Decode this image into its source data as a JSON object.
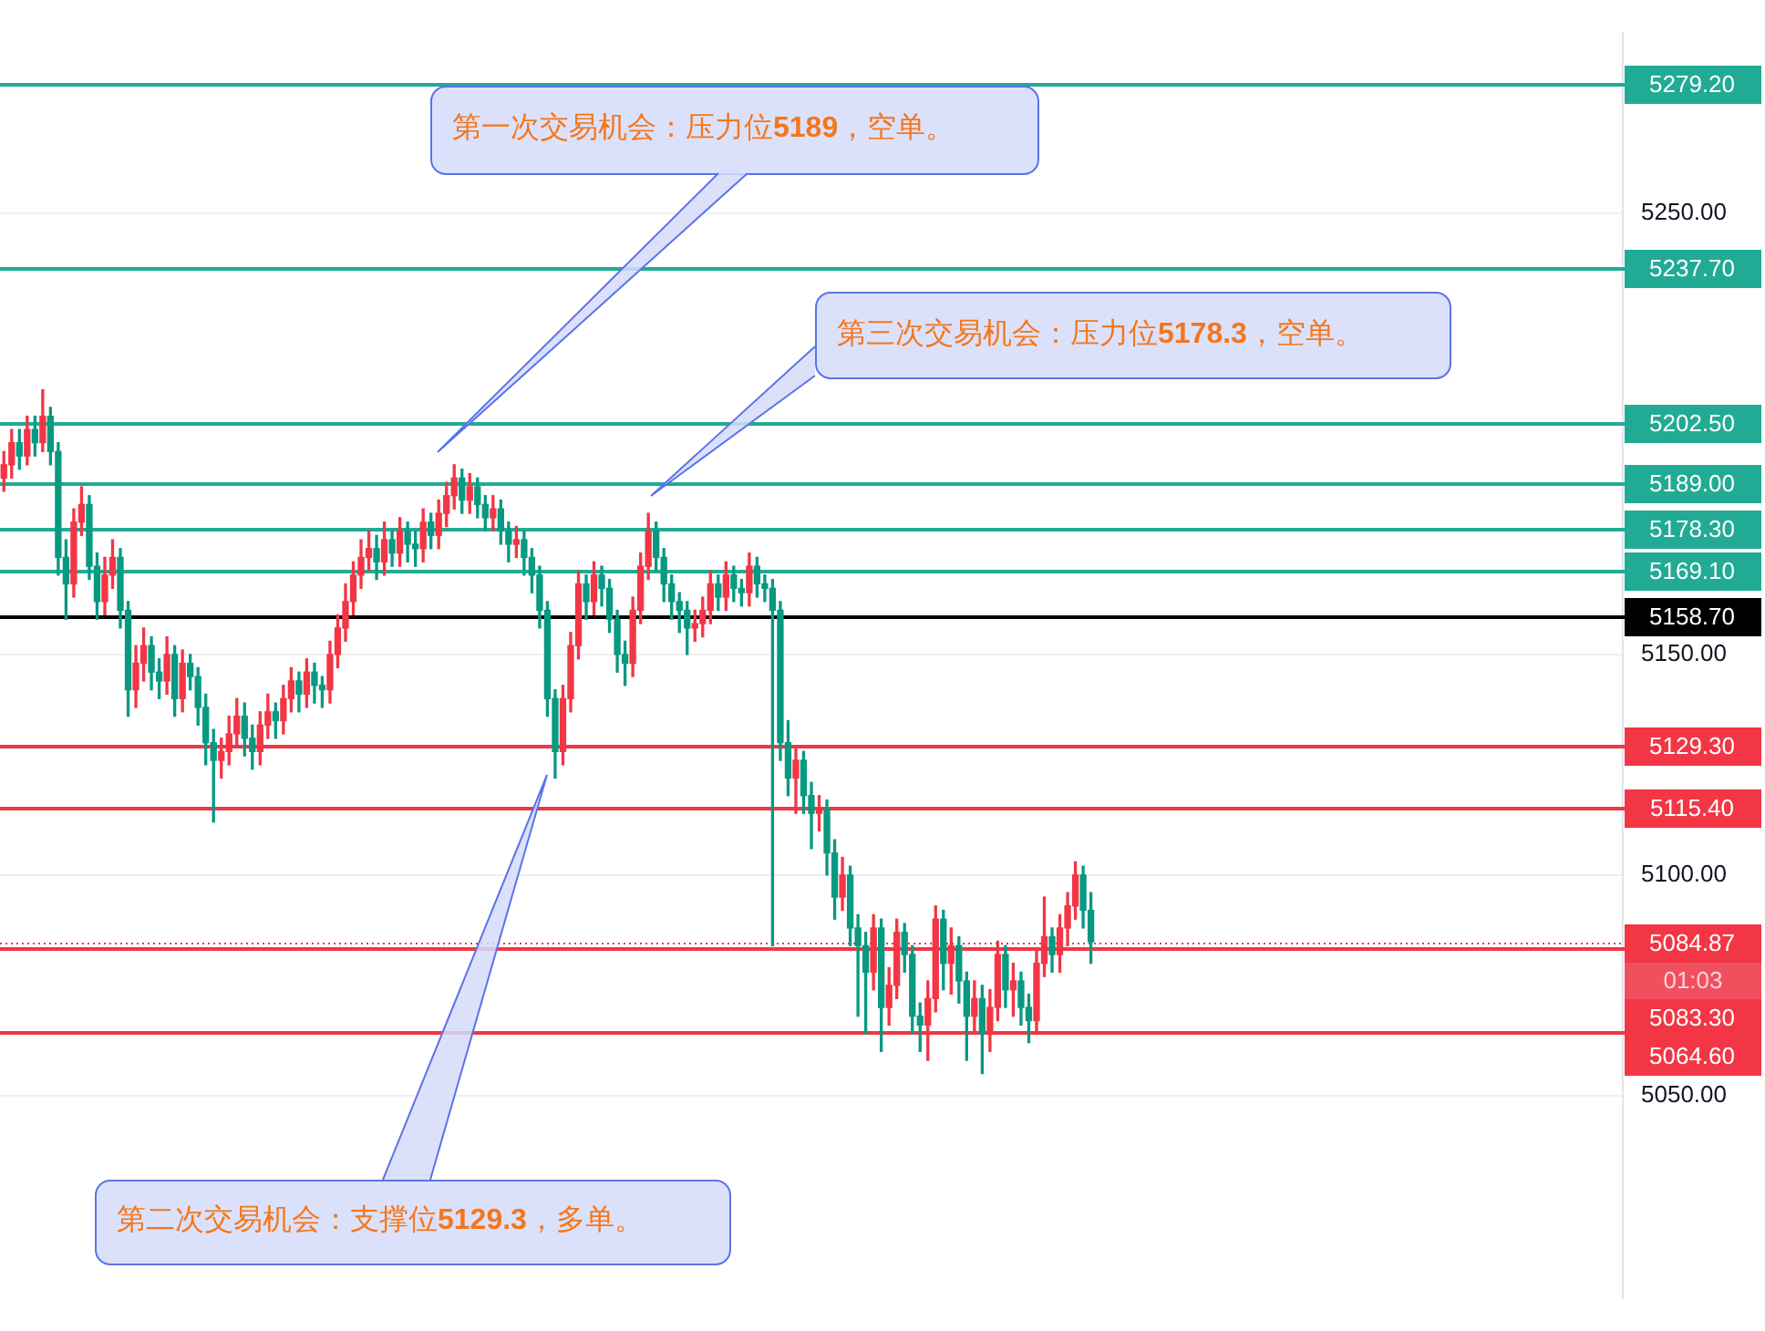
{
  "chart_data": {
    "type": "candlestick",
    "categories": [
      null,
      null,
      null,
      null,
      null,
      null,
      null,
      null,
      null,
      null,
      null,
      null,
      null,
      null,
      null,
      null,
      null,
      null,
      null,
      null,
      null,
      null,
      null,
      null,
      null,
      null,
      null,
      null,
      null,
      null,
      null,
      null,
      null,
      null,
      null,
      null,
      null,
      null,
      null,
      null,
      null,
      null,
      null,
      null,
      null,
      null,
      null,
      null,
      null,
      null,
      null,
      null,
      null,
      null,
      null,
      null,
      null,
      null,
      null,
      null,
      null,
      null,
      null,
      null,
      null,
      null,
      null,
      null,
      null,
      null,
      null,
      null,
      null,
      null,
      null,
      null,
      null,
      null,
      null,
      null,
      null,
      null,
      null,
      null,
      null,
      null,
      null,
      null,
      null,
      null,
      null,
      null,
      null,
      null,
      null,
      null,
      null,
      null,
      null,
      null,
      null,
      null,
      null,
      null,
      null,
      null,
      null,
      null,
      null,
      null,
      null,
      null,
      null,
      null,
      null,
      null,
      null,
      null,
      null,
      null,
      null,
      null,
      null,
      null,
      null,
      null,
      null,
      null,
      null,
      null,
      null,
      null,
      null,
      null,
      null,
      null,
      null,
      null,
      null,
      null,
      null,
      null,
      null,
      null,
      null,
      null,
      null,
      null,
      null,
      null,
      null,
      null,
      null,
      null,
      null,
      null,
      null,
      null,
      null,
      null,
      null,
      null,
      null,
      null,
      null,
      null,
      null,
      null,
      null,
      null,
      null,
      null,
      null,
      null,
      null,
      null,
      null,
      null,
      null,
      null,
      null,
      null,
      null,
      null,
      null,
      null,
      null,
      null,
      null,
      null,
      null,
      null,
      null,
      null,
      null,
      null,
      null,
      null,
      null,
      null,
      null,
      null,
      null,
      null,
      null,
      null,
      null,
      null,
      null
    ],
    "ohlc": [
      [
        5190,
        5196,
        5187,
        5193
      ],
      [
        5193,
        5201,
        5190,
        5198
      ],
      [
        5198,
        5201,
        5192,
        5195
      ],
      [
        5195,
        5204,
        5193,
        5201
      ],
      [
        5201,
        5204,
        5195,
        5198
      ],
      [
        5198,
        5210,
        5196,
        5204
      ],
      [
        5204,
        5206,
        5193,
        5196
      ],
      [
        5196,
        5198,
        5168,
        5172
      ],
      [
        5172,
        5176,
        5158,
        5166
      ],
      [
        5166,
        5183,
        5163,
        5180
      ],
      [
        5180,
        5188,
        5177,
        5184
      ],
      [
        5184,
        5186,
        5167,
        5170
      ],
      [
        5170,
        5173,
        5158,
        5162
      ],
      [
        5162,
        5172,
        5159,
        5168
      ],
      [
        5168,
        5176,
        5165,
        5172
      ],
      [
        5172,
        5174,
        5156,
        5160
      ],
      [
        5160,
        5162,
        5136,
        5142
      ],
      [
        5142,
        5152,
        5138,
        5148
      ],
      [
        5148,
        5156,
        5144,
        5152
      ],
      [
        5152,
        5154,
        5142,
        5146
      ],
      [
        5146,
        5149,
        5140,
        5144
      ],
      [
        5144,
        5154,
        5141,
        5150
      ],
      [
        5150,
        5152,
        5136,
        5140
      ],
      [
        5140,
        5151,
        5137,
        5148
      ],
      [
        5148,
        5150,
        5142,
        5145
      ],
      [
        5145,
        5147,
        5134,
        5138
      ],
      [
        5138,
        5141,
        5125,
        5130
      ],
      [
        5130,
        5133,
        5112,
        5126
      ],
      [
        5126,
        5131,
        5122,
        5128
      ],
      [
        5128,
        5136,
        5125,
        5132
      ],
      [
        5132,
        5140,
        5129,
        5136
      ],
      [
        5136,
        5139,
        5127,
        5131
      ],
      [
        5131,
        5134,
        5124,
        5128
      ],
      [
        5128,
        5137,
        5125,
        5134
      ],
      [
        5134,
        5141,
        5131,
        5137
      ],
      [
        5137,
        5139,
        5131,
        5135
      ],
      [
        5135,
        5143,
        5132,
        5140
      ],
      [
        5140,
        5147,
        5137,
        5144
      ],
      [
        5144,
        5146,
        5137,
        5141
      ],
      [
        5141,
        5149,
        5138,
        5146
      ],
      [
        5146,
        5148,
        5139,
        5143
      ],
      [
        5143,
        5145,
        5138,
        5142
      ],
      [
        5142,
        5153,
        5139,
        5150
      ],
      [
        5150,
        5159,
        5147,
        5156
      ],
      [
        5156,
        5166,
        5153,
        5162
      ],
      [
        5162,
        5171,
        5159,
        5168
      ],
      [
        5168,
        5176,
        5165,
        5172
      ],
      [
        5172,
        5178,
        5169,
        5174
      ],
      [
        5174,
        5177,
        5167,
        5171
      ],
      [
        5171,
        5180,
        5168,
        5176
      ],
      [
        5176,
        5178,
        5170,
        5173
      ],
      [
        5173,
        5181,
        5170,
        5178
      ],
      [
        5178,
        5180,
        5171,
        5175
      ],
      [
        5175,
        5178,
        5170,
        5174
      ],
      [
        5174,
        5183,
        5171,
        5180
      ],
      [
        5180,
        5182,
        5174,
        5177
      ],
      [
        5177,
        5185,
        5174,
        5182
      ],
      [
        5182,
        5189,
        5179,
        5186
      ],
      [
        5186,
        5193,
        5183,
        5190
      ],
      [
        5190,
        5192,
        5182,
        5185
      ],
      [
        5185,
        5191,
        5182,
        5188
      ],
      [
        5188,
        5190,
        5181,
        5184
      ],
      [
        5184,
        5186,
        5178,
        5181
      ],
      [
        5181,
        5186,
        5178,
        5183
      ],
      [
        5183,
        5185,
        5175,
        5178
      ],
      [
        5178,
        5180,
        5171,
        5175
      ],
      [
        5175,
        5179,
        5172,
        5176
      ],
      [
        5176,
        5178,
        5168,
        5172
      ],
      [
        5172,
        5174,
        5164,
        5168
      ],
      [
        5168,
        5170,
        5156,
        5160
      ],
      [
        5160,
        5162,
        5136,
        5140
      ],
      [
        5140,
        5142,
        5122,
        5128
      ],
      [
        5128,
        5143,
        5125,
        5140
      ],
      [
        5140,
        5155,
        5137,
        5152
      ],
      [
        5152,
        5169,
        5149,
        5166
      ],
      [
        5166,
        5168,
        5158,
        5162
      ],
      [
        5162,
        5171,
        5159,
        5168
      ],
      [
        5168,
        5170,
        5161,
        5165
      ],
      [
        5165,
        5167,
        5155,
        5158
      ],
      [
        5158,
        5160,
        5146,
        5150
      ],
      [
        5150,
        5153,
        5143,
        5148
      ],
      [
        5148,
        5163,
        5145,
        5160
      ],
      [
        5160,
        5173,
        5157,
        5170
      ],
      [
        5170,
        5182,
        5167,
        5178
      ],
      [
        5178,
        5180,
        5169,
        5172
      ],
      [
        5172,
        5174,
        5162,
        5166
      ],
      [
        5166,
        5168,
        5158,
        5162
      ],
      [
        5162,
        5164,
        5155,
        5160
      ],
      [
        5160,
        5162,
        5150,
        5156
      ],
      [
        5156,
        5160,
        5153,
        5157
      ],
      [
        5157,
        5163,
        5154,
        5160
      ],
      [
        5160,
        5169,
        5157,
        5166
      ],
      [
        5166,
        5168,
        5160,
        5163
      ],
      [
        5163,
        5171,
        5160,
        5168
      ],
      [
        5168,
        5170,
        5162,
        5165
      ],
      [
        5165,
        5167,
        5161,
        5164
      ],
      [
        5164,
        5173,
        5161,
        5170
      ],
      [
        5170,
        5172,
        5163,
        5166
      ],
      [
        5166,
        5168,
        5162,
        5165
      ],
      [
        5165,
        5167,
        5084,
        5160
      ],
      [
        5160,
        5162,
        5126,
        5130
      ],
      [
        5130,
        5135,
        5118,
        5122
      ],
      [
        5122,
        5129,
        5114,
        5126
      ],
      [
        5126,
        5128,
        5114,
        5118
      ],
      [
        5118,
        5121,
        5106,
        5114
      ],
      [
        5114,
        5118,
        5110,
        5115
      ],
      [
        5115,
        5117,
        5100,
        5105
      ],
      [
        5105,
        5108,
        5090,
        5095
      ],
      [
        5095,
        5104,
        5092,
        5100
      ],
      [
        5100,
        5102,
        5084,
        5088
      ],
      [
        5088,
        5091,
        5068,
        5084
      ],
      [
        5084,
        5087,
        5064,
        5078
      ],
      [
        5078,
        5091,
        5074,
        5088
      ],
      [
        5088,
        5090,
        5060,
        5070
      ],
      [
        5070,
        5079,
        5066,
        5075
      ],
      [
        5075,
        5090,
        5072,
        5087
      ],
      [
        5087,
        5089,
        5078,
        5082
      ],
      [
        5082,
        5084,
        5064,
        5068
      ],
      [
        5068,
        5071,
        5060,
        5066
      ],
      [
        5066,
        5076,
        5058,
        5072
      ],
      [
        5072,
        5093,
        5069,
        5090
      ],
      [
        5090,
        5092,
        5074,
        5080
      ],
      [
        5080,
        5088,
        5073,
        5084
      ],
      [
        5084,
        5086,
        5071,
        5076
      ],
      [
        5076,
        5078,
        5058,
        5068
      ],
      [
        5068,
        5076,
        5064,
        5072
      ],
      [
        5072,
        5075,
        5055,
        5064
      ],
      [
        5064,
        5074,
        5060,
        5070
      ],
      [
        5070,
        5085,
        5067,
        5082
      ],
      [
        5082,
        5084,
        5070,
        5074
      ],
      [
        5074,
        5080,
        5068,
        5076
      ],
      [
        5076,
        5078,
        5066,
        5070
      ],
      [
        5070,
        5073,
        5062,
        5067
      ],
      [
        5067,
        5083,
        5064,
        5080
      ],
      [
        5080,
        5095,
        5077,
        5086
      ],
      [
        5086,
        5088,
        5078,
        5082
      ],
      [
        5082,
        5091,
        5078,
        5088
      ],
      [
        5088,
        5096,
        5084,
        5093
      ],
      [
        5093,
        5103,
        5090,
        5100
      ],
      [
        5100,
        5102,
        5088,
        5092
      ],
      [
        5092,
        5096,
        5080,
        5084.87
      ],
      null,
      null,
      null,
      null,
      null,
      null,
      null,
      null,
      null,
      null,
      null,
      null,
      null,
      null,
      null,
      null,
      null,
      null,
      null,
      null,
      null,
      null,
      null,
      null,
      null,
      null,
      null,
      null,
      null,
      null,
      null,
      null,
      null,
      null,
      null,
      null,
      null,
      null,
      null,
      null,
      null,
      null,
      null,
      null,
      null,
      null,
      null,
      null,
      null,
      null,
      null,
      null,
      null,
      null,
      null,
      null,
      null,
      null,
      null,
      null,
      null,
      null,
      null,
      null,
      null,
      null,
      null,
      null
    ],
    "colors": [
      "#f23645",
      "#f23645",
      "#089981",
      "#f23645",
      "#089981",
      "#f23645",
      "#089981",
      "#089981",
      "#089981",
      "#f23645",
      "#f23645",
      "#089981",
      "#089981",
      "#f23645",
      "#f23645",
      "#089981",
      "#089981",
      "#f23645",
      "#f23645",
      "#089981",
      "#089981",
      "#f23645",
      "#089981",
      "#f23645",
      "#089981",
      "#089981",
      "#089981",
      "#089981",
      "#f23645",
      "#f23645",
      "#f23645",
      "#089981",
      "#089981",
      "#f23645",
      "#f23645",
      "#089981",
      "#f23645",
      "#f23645",
      "#089981",
      "#f23645",
      "#089981",
      "#089981",
      "#f23645",
      "#f23645",
      "#f23645",
      "#f23645",
      "#f23645",
      "#f23645",
      "#089981",
      "#f23645",
      "#089981",
      "#f23645",
      "#089981",
      "#089981",
      "#f23645",
      "#089981",
      "#f23645",
      "#f23645",
      "#f23645",
      "#089981",
      "#f23645",
      "#089981",
      "#089981",
      "#f23645",
      "#089981",
      "#089981",
      "#f23645",
      "#089981",
      "#089981",
      "#089981",
      "#089981",
      "#089981",
      "#f23645",
      "#f23645",
      "#f23645",
      "#089981",
      "#f23645",
      "#089981",
      "#089981",
      "#089981",
      "#089981",
      "#f23645",
      "#f23645",
      "#f23645",
      "#089981",
      "#089981",
      "#089981",
      "#089981",
      "#089981",
      "#f23645",
      "#f23645",
      "#f23645",
      "#089981",
      "#f23645",
      "#089981",
      "#089981",
      "#f23645",
      "#089981",
      "#089981",
      "#089981",
      "#089981",
      "#089981",
      "#f23645",
      "#089981",
      "#089981",
      "#f23645",
      "#089981",
      "#089981",
      "#f23645",
      "#089981",
      "#089981",
      "#089981",
      "#f23645",
      "#089981",
      "#f23645",
      "#f23645",
      "#089981",
      "#089981",
      "#089981",
      "#f23645",
      "#f23645",
      "#089981",
      "#f23645",
      "#089981",
      "#089981",
      "#f23645",
      "#089981",
      "#f23645",
      "#f23645",
      "#089981",
      "#f23645",
      "#089981",
      "#089981",
      "#f23645",
      "#f23645",
      "#089981",
      "#f23645",
      "#f23645",
      "#f23645",
      "#089981",
      "#089981",
      null,
      null,
      null,
      null,
      null,
      null,
      null,
      null,
      null,
      null,
      null,
      null,
      null,
      null,
      null,
      null,
      null,
      null,
      null,
      null,
      null,
      null,
      null,
      null,
      null,
      null,
      null,
      null,
      null,
      null,
      null,
      null,
      null,
      null,
      null,
      null,
      null,
      null,
      null,
      null,
      null,
      null,
      null,
      null,
      null,
      null,
      null,
      null,
      null,
      null,
      null,
      null,
      null,
      null,
      null,
      null,
      null,
      null,
      null,
      null,
      null,
      null,
      null,
      null,
      null,
      null,
      null,
      null
    ],
    "ylim": [
      5004,
      5291
    ],
    "yticks": [
      {
        "value": 5050,
        "label": "5050.00"
      },
      {
        "value": 5100,
        "label": "5100.00"
      },
      {
        "value": 5150,
        "label": "5150.00"
      },
      {
        "value": 5250,
        "label": "5250.00"
      }
    ],
    "tick_labels": "y",
    "grid": "y",
    "legend": false,
    "ref_lines": [
      {
        "axis": "y",
        "value": 5279.2,
        "label": "5279.20",
        "color": "#22ab94"
      },
      {
        "axis": "y",
        "value": 5237.7,
        "label": "5237.70",
        "color": "#22ab94"
      },
      {
        "axis": "y",
        "value": 5202.5,
        "label": "5202.50",
        "color": "#22ab94"
      },
      {
        "axis": "y",
        "value": 5189,
        "label": "5189.00",
        "color": "#22ab94"
      },
      {
        "axis": "y",
        "value": 5178.3,
        "label": "5178.30",
        "color": "#22ab94"
      },
      {
        "axis": "y",
        "value": 5169.1,
        "label": "5169.10",
        "color": "#22ab94"
      },
      {
        "axis": "y",
        "value": 5158.7,
        "label": "5158.70",
        "color": "#000000"
      },
      {
        "axis": "y",
        "value": 5129.3,
        "label": "5129.30",
        "color": "#f23645"
      },
      {
        "axis": "y",
        "value": 5115.4,
        "label": "5115.40",
        "color": "#f23645"
      },
      {
        "axis": "y",
        "value": 5083.3,
        "label": "5083.30",
        "color": "#f23645"
      },
      {
        "axis": "y",
        "value": 5064.6,
        "label": "5064.60",
        "color": "#f23645"
      },
      {
        "axis": "y",
        "value": 5084.87,
        "label": "5084.87",
        "color": "#f23645",
        "line_style": "dotted"
      }
    ],
    "annotations": [
      "第一次交易机会：压力位5189，空单。",
      "第三次交易机会：压力位5178.3，空单。",
      "第二次交易机会：支撑位5129.3，多单。",
      "01:03"
    ]
  }
}
